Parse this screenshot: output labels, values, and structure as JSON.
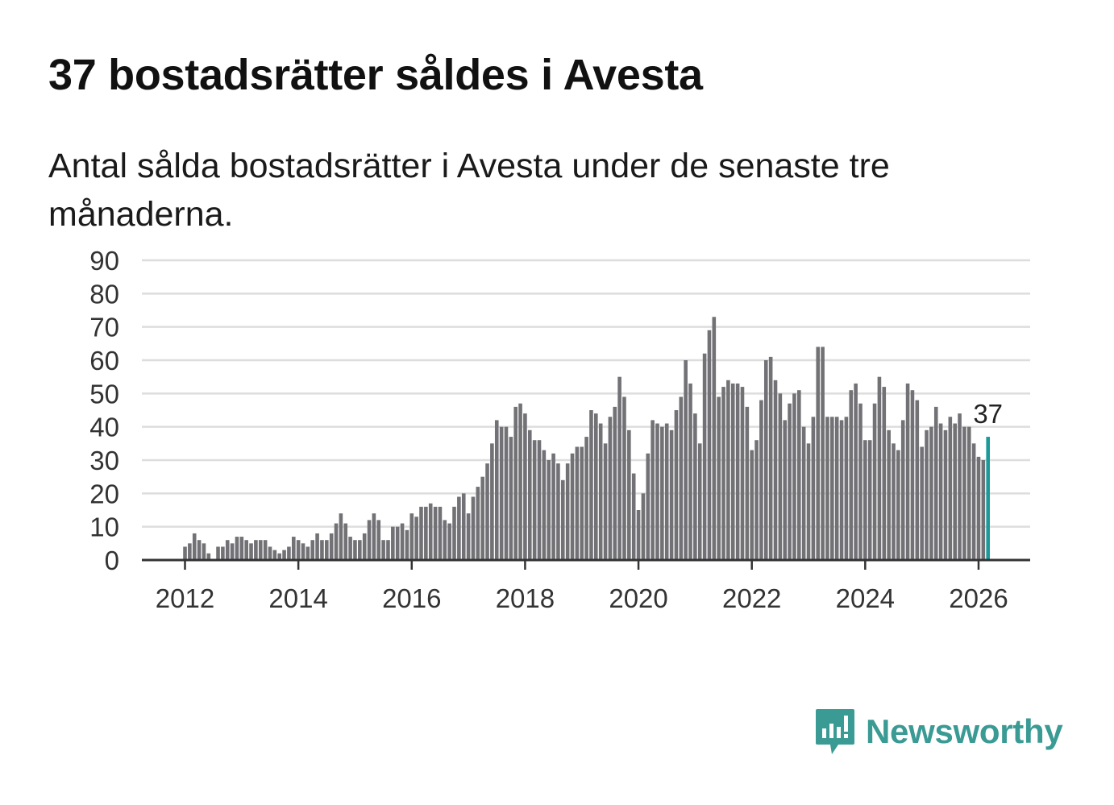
{
  "title": "37 bostadsrätter såldes i Avesta",
  "subtitle": "Antal sålda bostadsrätter i Avesta under de senaste tre månaderna.",
  "brand": {
    "name": "Newsworthy",
    "color": "#3a9a94",
    "icon": "newsworthy-logo-icon"
  },
  "colors": {
    "bar": "#727175",
    "highlight": "#1b9a9a",
    "grid": "#dddddd",
    "axis": "#333333"
  },
  "chart_data": {
    "type": "bar",
    "title": "37 bostadsrätter såldes i Avesta",
    "xlabel": "",
    "ylabel": "",
    "ylim": [
      0,
      90
    ],
    "yticks": [
      0,
      10,
      20,
      30,
      40,
      50,
      60,
      70,
      80,
      90
    ],
    "xticks": [
      "2012",
      "2014",
      "2016",
      "2018",
      "2020",
      "2022",
      "2024",
      "2026"
    ],
    "x_start": "2012-01",
    "grid": true,
    "highlight_last": true,
    "highlight_label": "37",
    "values": [
      4,
      5,
      8,
      6,
      5,
      2,
      0,
      4,
      4,
      6,
      5,
      7,
      7,
      6,
      5,
      6,
      6,
      6,
      4,
      3,
      2,
      3,
      4,
      7,
      6,
      5,
      4,
      6,
      8,
      6,
      6,
      8,
      11,
      14,
      11,
      7,
      6,
      6,
      8,
      12,
      14,
      12,
      6,
      6,
      10,
      10,
      11,
      9,
      14,
      13,
      16,
      16,
      17,
      16,
      16,
      12,
      11,
      16,
      19,
      20,
      14,
      19,
      22,
      25,
      29,
      35,
      42,
      40,
      40,
      37,
      46,
      47,
      44,
      39,
      36,
      36,
      33,
      30,
      32,
      29,
      24,
      29,
      32,
      34,
      34,
      37,
      45,
      44,
      41,
      35,
      43,
      46,
      55,
      49,
      39,
      26,
      15,
      20,
      32,
      42,
      41,
      40,
      41,
      39,
      45,
      49,
      60,
      53,
      44,
      35,
      62,
      69,
      73,
      49,
      52,
      54,
      53,
      53,
      52,
      46,
      33,
      36,
      48,
      60,
      61,
      54,
      50,
      42,
      47,
      50,
      51,
      40,
      35,
      43,
      64,
      64,
      43,
      43,
      43,
      42,
      43,
      51,
      53,
      47,
      36,
      36,
      47,
      55,
      52,
      39,
      35,
      33,
      42,
      53,
      51,
      48,
      34,
      39,
      40,
      46,
      41,
      39,
      43,
      41,
      44,
      40,
      40,
      35,
      31,
      30,
      37
    ]
  }
}
